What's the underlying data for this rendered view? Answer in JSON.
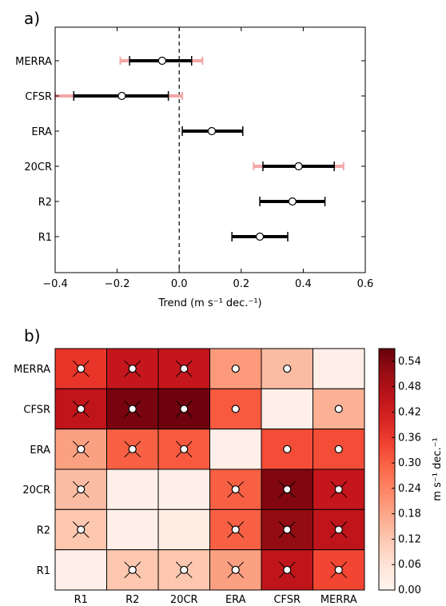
{
  "panel_a_label": "a)",
  "panel_b_label": "b)",
  "chart_data": [
    {
      "type": "errorbar",
      "panel": "a)",
      "categories": [
        "R1",
        "R2",
        "20CR",
        "ERA",
        "CFSR",
        "MERRA"
      ],
      "values": [
        0.26,
        0.365,
        0.385,
        0.105,
        -0.185,
        -0.055
      ],
      "ci_inner": [
        [
          0.17,
          0.35
        ],
        [
          0.26,
          0.47
        ],
        [
          0.27,
          0.5
        ],
        [
          0.01,
          0.205
        ],
        [
          -0.34,
          -0.035
        ],
        [
          -0.16,
          0.04
        ]
      ],
      "ci_outer": [
        [
          0.17,
          0.35
        ],
        [
          0.26,
          0.47
        ],
        [
          0.24,
          0.53
        ],
        [
          0.01,
          0.205
        ],
        [
          -0.4,
          0.01
        ],
        [
          -0.19,
          0.075
        ]
      ],
      "xlabel": "Trend (m s⁻¹ dec.⁻¹)",
      "xlim": [
        -0.4,
        0.6
      ],
      "xticks": [
        -0.4,
        -0.2,
        0.0,
        0.2,
        0.4,
        0.6
      ],
      "xtick_labels": [
        "−0.4",
        "−0.2",
        "0.0",
        "0.2",
        "0.4",
        "0.6"
      ],
      "zero_line": 0.0,
      "colors": {
        "inner": "#000000",
        "outer": "#f4a6a6",
        "marker": "#ffffff"
      }
    },
    {
      "type": "heatmap",
      "panel": "b)",
      "x_categories": [
        "R1",
        "R2",
        "20CR",
        "ERA",
        "CFSR",
        "MERRA"
      ],
      "y_categories": [
        "MERRA",
        "CFSR",
        "ERA",
        "20CR",
        "R2",
        "R1"
      ],
      "values": [
        [
          0.37,
          0.44,
          0.44,
          0.2,
          0.14,
          0.02
        ],
        [
          0.45,
          0.55,
          0.56,
          0.31,
          0.02,
          0.16
        ],
        [
          0.19,
          0.3,
          0.31,
          0.02,
          0.33,
          0.33
        ],
        [
          0.14,
          0.02,
          0.02,
          0.3,
          0.54,
          0.44
        ],
        [
          0.12,
          0.02,
          0.03,
          0.3,
          0.52,
          0.45
        ],
        [
          0.02,
          0.12,
          0.12,
          0.19,
          0.45,
          0.34
        ]
      ],
      "markers": [
        [
          "circle-cross",
          "circle-cross",
          "circle-cross",
          "circle",
          "circle",
          "none"
        ],
        [
          "circle-cross",
          "circle-cross",
          "circle-cross",
          "circle",
          "none",
          "circle"
        ],
        [
          "circle-cross",
          "circle-cross",
          "circle-cross",
          "none",
          "circle",
          "circle"
        ],
        [
          "circle-cross",
          "none",
          "none",
          "circle-cross",
          "circle-cross",
          "circle-cross"
        ],
        [
          "circle-cross",
          "none",
          "none",
          "circle-cross",
          "circle-cross",
          "circle-cross"
        ],
        [
          "none",
          "circle-cross",
          "circle-cross",
          "circle-cross",
          "circle-cross",
          "circle-cross"
        ]
      ],
      "colorbar": {
        "label": "m s⁻¹ dec.⁻¹",
        "range": [
          0.0,
          0.57
        ],
        "ticks": [
          0.0,
          0.06,
          0.12,
          0.18,
          0.24,
          0.3,
          0.36,
          0.42,
          0.48,
          0.54
        ],
        "tick_labels": [
          "0.00",
          "0.06",
          "0.12",
          "0.18",
          "0.24",
          "0.30",
          "0.36",
          "0.42",
          "0.48",
          "0.54"
        ],
        "colormap": "Reds"
      }
    }
  ]
}
